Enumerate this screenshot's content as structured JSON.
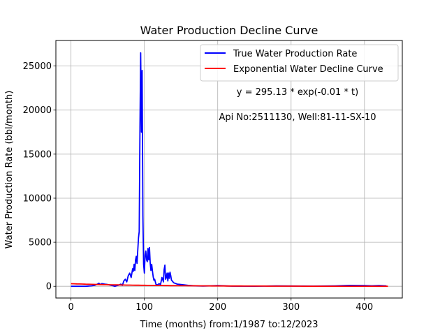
{
  "chart_data": {
    "type": "line",
    "title": "Water Production Decline Curve",
    "xlabel": "Time (months) from:1/1987 to:12/2023",
    "ylabel": "Water Production Rate (bbl/month)",
    "xlim": [
      -20.6,
      451.6
    ],
    "ylim": [
      -1330,
      27900
    ],
    "xticks": [
      0,
      100,
      200,
      300,
      400
    ],
    "yticks": [
      0,
      5000,
      10000,
      15000,
      20000,
      25000
    ],
    "grid": true,
    "legend_position": "top-right",
    "series": [
      {
        "name": "True Water Production Rate",
        "color": "#0000ff",
        "x": [
          0,
          10,
          20,
          28,
          32,
          36,
          38,
          40,
          42,
          46,
          50,
          55,
          60,
          64,
          68,
          70,
          72,
          74,
          76,
          78,
          80,
          82,
          84,
          85,
          86,
          87,
          88,
          89,
          90,
          91,
          92,
          93,
          94,
          95,
          96,
          97,
          98,
          99,
          100,
          101,
          102,
          103,
          104,
          105,
          106,
          107,
          108,
          109,
          110,
          111,
          112,
          113,
          114,
          115,
          116,
          118,
          120,
          122,
          124,
          126,
          127,
          128,
          129,
          130,
          131,
          132,
          133,
          134,
          135,
          136,
          137,
          138,
          140,
          145,
          150,
          155,
          160,
          170,
          180,
          190,
          200,
          220,
          250,
          280,
          300,
          330,
          360,
          380,
          400,
          410,
          420,
          430
        ],
        "y": [
          0,
          0,
          0,
          50,
          100,
          250,
          350,
          200,
          300,
          250,
          200,
          100,
          0,
          100,
          250,
          100,
          600,
          800,
          500,
          1200,
          1500,
          1000,
          2000,
          1700,
          2500,
          1800,
          3000,
          3400,
          2600,
          4000,
          5500,
          6200,
          18000,
          26500,
          17500,
          24500,
          8000,
          2500,
          1500,
          3500,
          4000,
          3000,
          2800,
          4300,
          3000,
          4400,
          2600,
          1800,
          2500,
          1800,
          1100,
          700,
          800,
          500,
          200,
          150,
          300,
          200,
          1000,
          500,
          1900,
          2400,
          800,
          1000,
          1500,
          600,
          1500,
          900,
          1600,
          1200,
          700,
          600,
          400,
          250,
          200,
          150,
          100,
          50,
          30,
          50,
          80,
          20,
          10,
          40,
          30,
          20,
          50,
          100,
          80,
          60,
          80,
          50
        ]
      },
      {
        "name": "Exponential Water Decline Curve",
        "color": "#ff0000",
        "model": {
          "a": 295.13,
          "b": -0.01,
          "x_start": 0,
          "x_end": 432
        }
      }
    ],
    "annotations": [
      "y = 295.13 * exp(-0.01 * t)",
      "Api No:2511130, Well:81-11-SX-10"
    ]
  }
}
